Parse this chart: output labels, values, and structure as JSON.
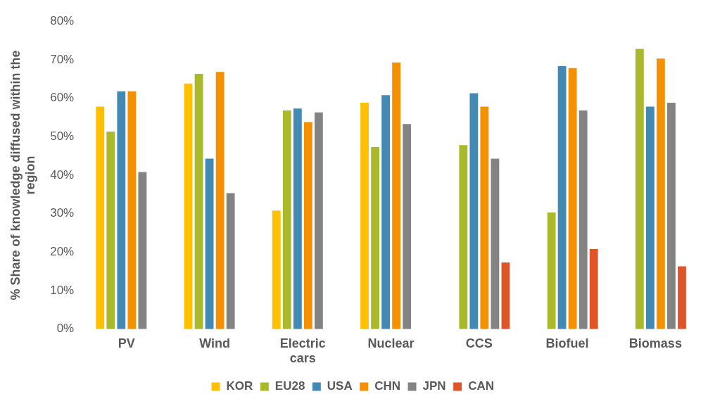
{
  "chart_data": {
    "type": "bar",
    "ylabel": "% Share of knowledge diffused within the region",
    "categories": [
      "PV",
      "Wind",
      "Electric cars",
      "Nuclear",
      "CCS",
      "Biofuel",
      "Biomass"
    ],
    "series": [
      {
        "name": "KOR",
        "color": "#ffc000",
        "values": [
          58,
          64,
          31,
          59,
          null,
          null,
          null
        ]
      },
      {
        "name": "EU28",
        "color": "#a9b92b",
        "values": [
          51.5,
          66.5,
          57,
          47.5,
          48,
          30.5,
          73
        ]
      },
      {
        "name": "USA",
        "color": "#4289b4",
        "values": [
          62,
          44.5,
          57.5,
          61,
          61.5,
          68.5,
          58
        ]
      },
      {
        "name": "CHN",
        "color": "#f59100",
        "values": [
          62,
          67,
          54,
          69.5,
          58,
          68,
          70.5
        ]
      },
      {
        "name": "JPN",
        "color": "#838383",
        "values": [
          41,
          35.5,
          56.5,
          53.5,
          44.5,
          57,
          59
        ]
      },
      {
        "name": "CAN",
        "color": "#e05527",
        "values": [
          null,
          null,
          null,
          null,
          17.5,
          21,
          16.5
        ]
      }
    ],
    "ylim": [
      0,
      80
    ],
    "yticks": [
      {
        "value": 0,
        "label": "0%"
      },
      {
        "value": 10,
        "label": "10%"
      },
      {
        "value": 20,
        "label": "20%"
      },
      {
        "value": 30,
        "label": "30%"
      },
      {
        "value": 40,
        "label": "40%"
      },
      {
        "value": 50,
        "label": "50%"
      },
      {
        "value": 60,
        "label": "60%"
      },
      {
        "value": 70,
        "label": "70%"
      },
      {
        "value": 80,
        "label": "80%"
      }
    ],
    "grid": false,
    "legend": "bottom"
  }
}
